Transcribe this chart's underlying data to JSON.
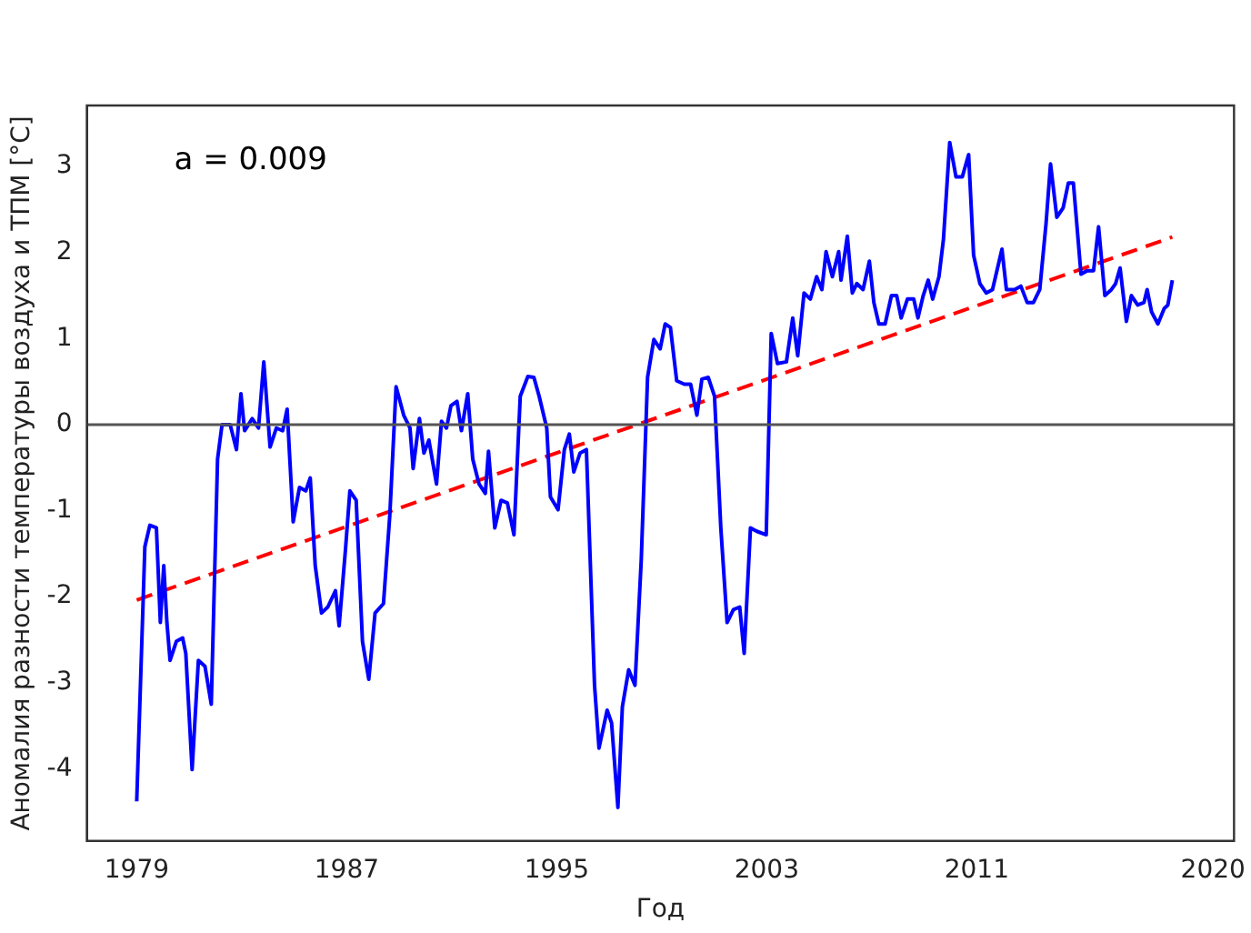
{
  "chart_data": {
    "type": "line",
    "xlabel": "Год",
    "ylabel": "Аномалия разности температуры воздуха и ТПМ [°C]",
    "annotations": [
      "a = 0.009"
    ],
    "xlim": [
      1977.1,
      2020.8
    ],
    "ylim": [
      -4.84,
      3.71
    ],
    "xticks": [
      1979,
      1987,
      1995,
      2003,
      2011,
      2020
    ],
    "yticks": [
      -4,
      -3,
      -2,
      -1,
      0,
      1,
      2,
      3
    ],
    "grid": false,
    "legend": false,
    "marker": "none",
    "ref_lines": [
      {
        "axis": "y",
        "value": 0,
        "color": "#555555"
      }
    ],
    "series": [
      {
        "color": "#0000ff",
        "line_style": "solid",
        "x": [
          1979.0,
          1979.31,
          1979.5,
          1979.75,
          1979.9,
          1980.03,
          1980.15,
          1980.27,
          1980.51,
          1980.75,
          1980.87,
          1981.11,
          1981.35,
          1981.6,
          1981.84,
          1982.08,
          1982.25,
          1982.56,
          1982.8,
          1982.97,
          1983.11,
          1983.4,
          1983.64,
          1983.84,
          1984.08,
          1984.32,
          1984.56,
          1984.73,
          1984.96,
          1985.2,
          1985.44,
          1985.61,
          1985.8,
          1986.04,
          1986.28,
          1986.57,
          1986.71,
          1986.95,
          1987.12,
          1987.36,
          1987.6,
          1987.84,
          1988.08,
          1988.4,
          1988.64,
          1988.88,
          1989.17,
          1989.41,
          1989.53,
          1989.77,
          1989.94,
          1990.13,
          1990.42,
          1990.61,
          1990.8,
          1990.97,
          1991.2,
          1991.37,
          1991.61,
          1991.8,
          1992.04,
          1992.28,
          1992.4,
          1992.64,
          1992.88,
          1993.12,
          1993.37,
          1993.61,
          1993.9,
          1994.13,
          1994.33,
          1994.62,
          1994.76,
          1995.05,
          1995.29,
          1995.48,
          1995.65,
          1995.89,
          1996.13,
          1996.44,
          1996.61,
          1996.92,
          1997.09,
          1997.33,
          1997.5,
          1997.74,
          1997.98,
          1998.22,
          1998.46,
          1998.7,
          1998.94,
          1999.13,
          1999.33,
          1999.57,
          1999.86,
          2000.1,
          2000.34,
          2000.53,
          2000.77,
          2001.01,
          2001.25,
          2001.49,
          2001.73,
          2001.97,
          2002.14,
          2002.38,
          2002.62,
          2002.98,
          2003.17,
          2003.41,
          2003.75,
          2003.99,
          2004.18,
          2004.42,
          2004.66,
          2004.9,
          2005.1,
          2005.26,
          2005.5,
          2005.74,
          2005.83,
          2006.07,
          2006.26,
          2006.43,
          2006.67,
          2006.91,
          2007.08,
          2007.27,
          2007.51,
          2007.75,
          2007.95,
          2008.12,
          2008.36,
          2008.6,
          2008.76,
          2008.96,
          2009.15,
          2009.32,
          2009.56,
          2009.73,
          2009.97,
          2010.21,
          2010.45,
          2010.69,
          2010.88,
          2011.12,
          2011.36,
          2011.6,
          2011.96,
          2012.13,
          2012.44,
          2012.68,
          2012.92,
          2013.16,
          2013.4,
          2013.64,
          2013.81,
          2014.05,
          2014.29,
          2014.49,
          2014.68,
          2014.97,
          2015.21,
          2015.45,
          2015.64,
          2015.88,
          2016.13,
          2016.29,
          2016.46,
          2016.7,
          2016.89,
          2017.13,
          2017.37,
          2017.49,
          2017.66,
          2017.9,
          2018.14,
          2018.28,
          2018.45
        ],
        "values": [
          -4.38,
          -1.42,
          -1.17,
          -1.2,
          -2.3,
          -1.64,
          -2.3,
          -2.74,
          -2.52,
          -2.48,
          -2.66,
          -4.01,
          -2.74,
          -2.81,
          -3.25,
          -0.4,
          0,
          0,
          -0.29,
          0.36,
          -0.07,
          0.07,
          -0.04,
          0.73,
          -0.26,
          -0.04,
          -0.07,
          0.18,
          -1.13,
          -0.73,
          -0.77,
          -0.62,
          -1.64,
          -2.19,
          -2.12,
          -1.93,
          -2.34,
          -1.46,
          -0.77,
          -0.88,
          -2.52,
          -2.96,
          -2.19,
          -2.08,
          -1.06,
          0.44,
          0.11,
          -0.04,
          -0.51,
          0.07,
          -0.33,
          -0.18,
          -0.69,
          0.04,
          -0.04,
          0.22,
          0.27,
          -0.07,
          0.36,
          -0.4,
          -0.69,
          -0.8,
          -0.31,
          -1.2,
          -0.88,
          -0.91,
          -1.28,
          0.33,
          0.56,
          0.55,
          0.33,
          -0.04,
          -0.84,
          -0.99,
          -0.29,
          -0.11,
          -0.55,
          -0.33,
          -0.29,
          -3.03,
          -3.76,
          -3.32,
          -3.47,
          -4.45,
          -3.28,
          -2.85,
          -3.03,
          -1.57,
          0.55,
          0.99,
          0.88,
          1.17,
          1.13,
          0.51,
          0.47,
          0.47,
          0.11,
          0.53,
          0.55,
          0.33,
          -1.2,
          -2.3,
          -2.15,
          -2.12,
          -2.66,
          -1.2,
          -1.24,
          -1.28,
          1.06,
          0.71,
          0.73,
          1.24,
          0.8,
          1.53,
          1.46,
          1.72,
          1.57,
          2.01,
          1.72,
          2.01,
          1.68,
          2.19,
          1.53,
          1.64,
          1.57,
          1.9,
          1.42,
          1.17,
          1.17,
          1.5,
          1.5,
          1.24,
          1.46,
          1.46,
          1.24,
          1.5,
          1.68,
          1.46,
          1.72,
          2.15,
          3.28,
          2.88,
          2.88,
          3.14,
          1.97,
          1.64,
          1.53,
          1.57,
          2.04,
          1.57,
          1.57,
          1.61,
          1.42,
          1.42,
          1.57,
          2.34,
          3.03,
          2.41,
          2.52,
          2.81,
          2.81,
          1.75,
          1.79,
          1.79,
          2.3,
          1.5,
          1.57,
          1.64,
          1.82,
          1.2,
          1.5,
          1.39,
          1.42,
          1.57,
          1.31,
          1.17,
          1.35,
          1.39,
          1.68
        ]
      },
      {
        "color": "#ff0000",
        "line_style": "dashed",
        "x": [
          1979.0,
          2018.45
        ],
        "values": [
          -2.04,
          2.18
        ]
      }
    ]
  }
}
